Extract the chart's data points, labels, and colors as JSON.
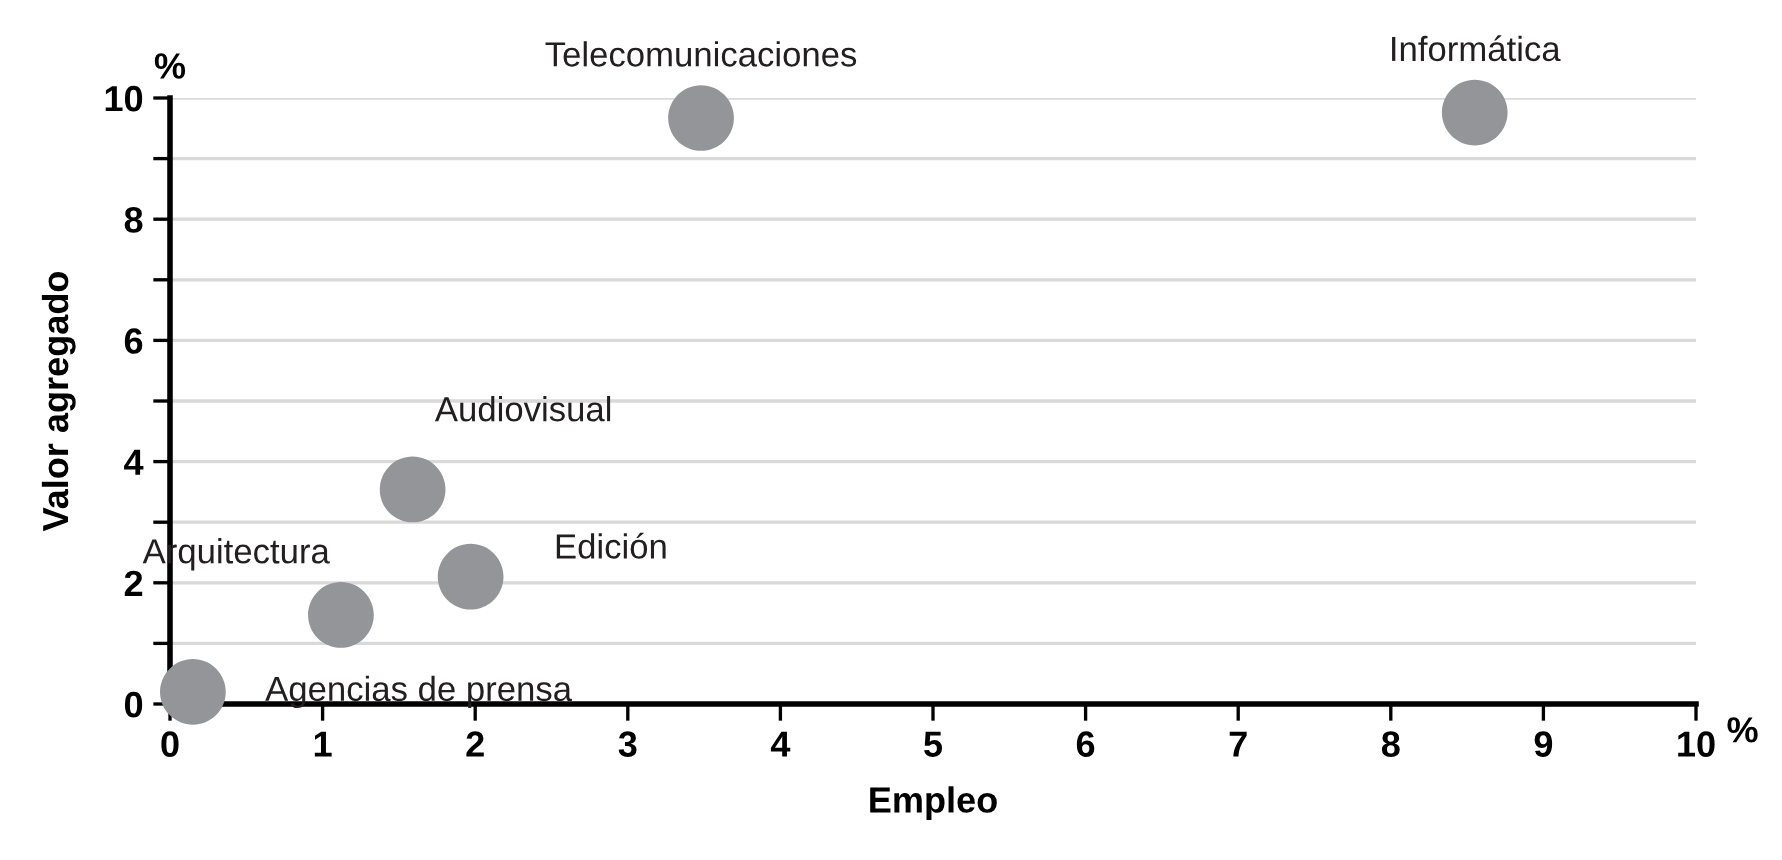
{
  "chart_data": {
    "type": "scatter",
    "xlabel": "Empleo",
    "ylabel": "Valor agregado",
    "x": [
      0.15,
      1.12,
      1.59,
      1.97,
      3.48,
      8.55
    ],
    "values": [
      0.2,
      1.47,
      3.54,
      2.1,
      9.67,
      9.76
    ],
    "color": "#939598",
    "marker": "circle",
    "xlim": [
      0,
      10
    ],
    "xticks": [
      0,
      1,
      2,
      3,
      4,
      5,
      6,
      7,
      8,
      9,
      10
    ],
    "ylim": [
      0,
      10
    ],
    "yticks": [
      0,
      {
        "value": 1,
        "label": null
      },
      2,
      {
        "value": 3,
        "label": null
      },
      4,
      {
        "value": 5,
        "label": null
      },
      6,
      {
        "value": 7,
        "label": null
      },
      8,
      {
        "value": 9,
        "label": null
      },
      10
    ],
    "grid": "y",
    "annotations": [
      {
        "text": "Agencias de prensa",
        "x": 0.15,
        "y": 0.2
      },
      {
        "text": "Arquitectura",
        "x": 1.12,
        "y": 1.47
      },
      {
        "text": "Audiovisual",
        "x": 1.59,
        "y": 3.54
      },
      {
        "text": "Edición",
        "x": 1.97,
        "y": 2.1
      },
      {
        "text": "Telecomunicaciones",
        "x": 3.48,
        "y": 9.67
      },
      {
        "text": "Informática",
        "x": 8.55,
        "y": 9.76
      },
      "%",
      "%"
    ]
  }
}
